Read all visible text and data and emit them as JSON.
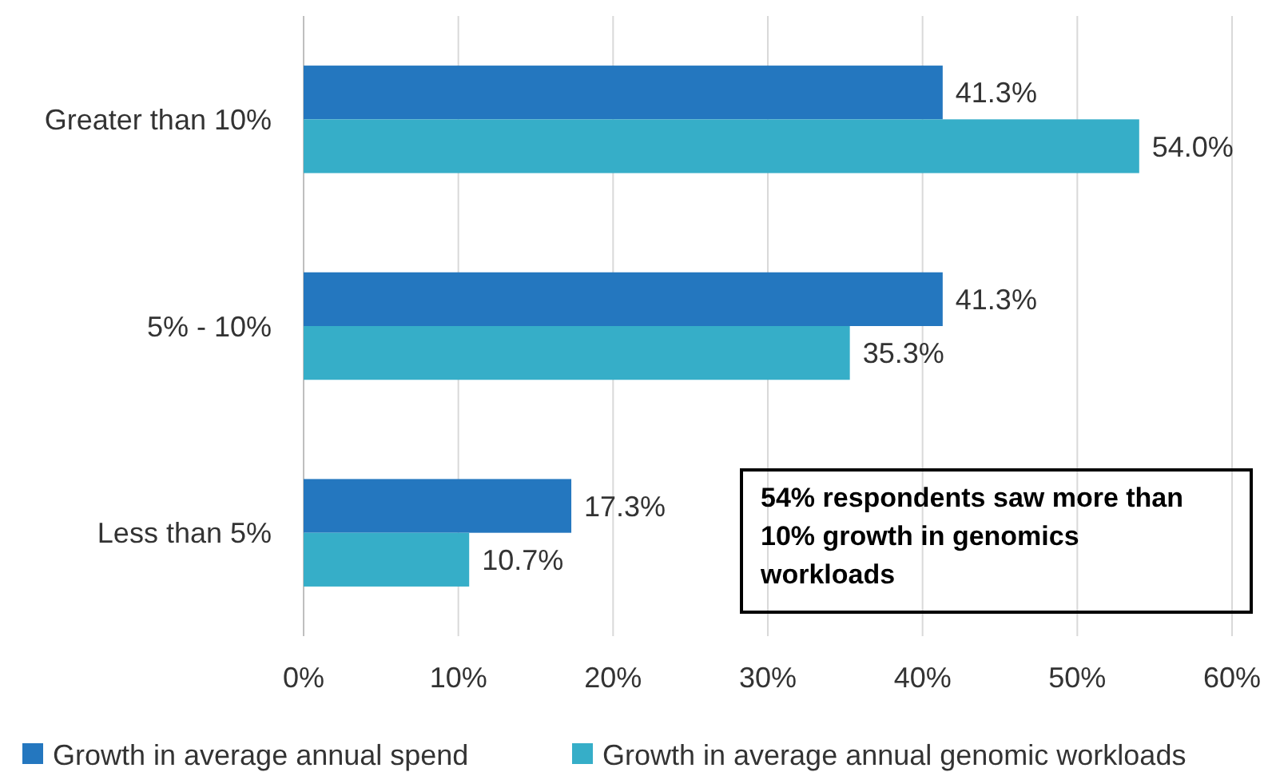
{
  "chart_data": {
    "type": "bar",
    "orientation": "horizontal",
    "categories": [
      "Greater than 10%",
      "5% - 10%",
      "Less than 5%"
    ],
    "series": [
      {
        "name": "Growth in average annual spend",
        "color": "#2477bf",
        "values": [
          41.3,
          41.3,
          17.3
        ],
        "value_labels": [
          "41.3%",
          "41.3%",
          "17.3%"
        ]
      },
      {
        "name": "Growth in average annual genomic workloads",
        "color": "#36aec8",
        "values": [
          54.0,
          35.3,
          10.7
        ],
        "value_labels": [
          "54.0%",
          "35.3%",
          "10.7%"
        ]
      }
    ],
    "xlim": [
      0,
      60
    ],
    "xticks": [
      {
        "value": 0,
        "label": "0%"
      },
      {
        "value": 10,
        "label": "10%"
      },
      {
        "value": 20,
        "label": "20%"
      },
      {
        "value": 30,
        "label": "30%"
      },
      {
        "value": 40,
        "label": "40%"
      },
      {
        "value": 50,
        "label": "50%"
      },
      {
        "value": 60,
        "label": "60%"
      }
    ],
    "grid": "x",
    "legend": "bottom",
    "annotations": [
      "54% respondents saw more than 10% growth in genomics workloads"
    ]
  }
}
